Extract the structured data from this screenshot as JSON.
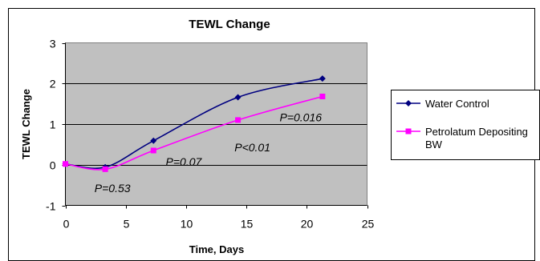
{
  "chart_data": {
    "type": "line",
    "title": "TEWL Change",
    "xlabel": "Time, Days",
    "ylabel": "TEWL Change",
    "xlim": [
      0,
      25
    ],
    "ylim": [
      -1,
      3
    ],
    "xticks": [
      "0",
      "5",
      "10",
      "15",
      "20",
      "25"
    ],
    "yticks": [
      "-1",
      "0",
      "1",
      "2",
      "3"
    ],
    "grid": true,
    "legend_position": "right",
    "plot_background": "#c0c0c0",
    "series": [
      {
        "name": "Water Control",
        "color": "#000080",
        "marker": "diamond",
        "x": [
          0,
          3.3,
          7.3,
          14.3,
          21.3
        ],
        "y": [
          0.02,
          -0.06,
          0.59,
          1.66,
          2.12
        ]
      },
      {
        "name": "Petrolatum Depositing BW",
        "color": "#ff00ff",
        "marker": "square",
        "x": [
          0,
          3.3,
          7.3,
          14.3,
          21.3
        ],
        "y": [
          0.02,
          -0.11,
          0.35,
          1.1,
          1.68
        ]
      }
    ],
    "annotations": [
      {
        "text": "P=0.53",
        "x": 3.9,
        "y": -0.58
      },
      {
        "text": "P=0.07",
        "x": 9.8,
        "y": 0.07
      },
      {
        "text": "P<0.01",
        "x": 15.5,
        "y": 0.43
      },
      {
        "text": "P=0.016",
        "x": 19.5,
        "y": 1.17
      }
    ]
  }
}
